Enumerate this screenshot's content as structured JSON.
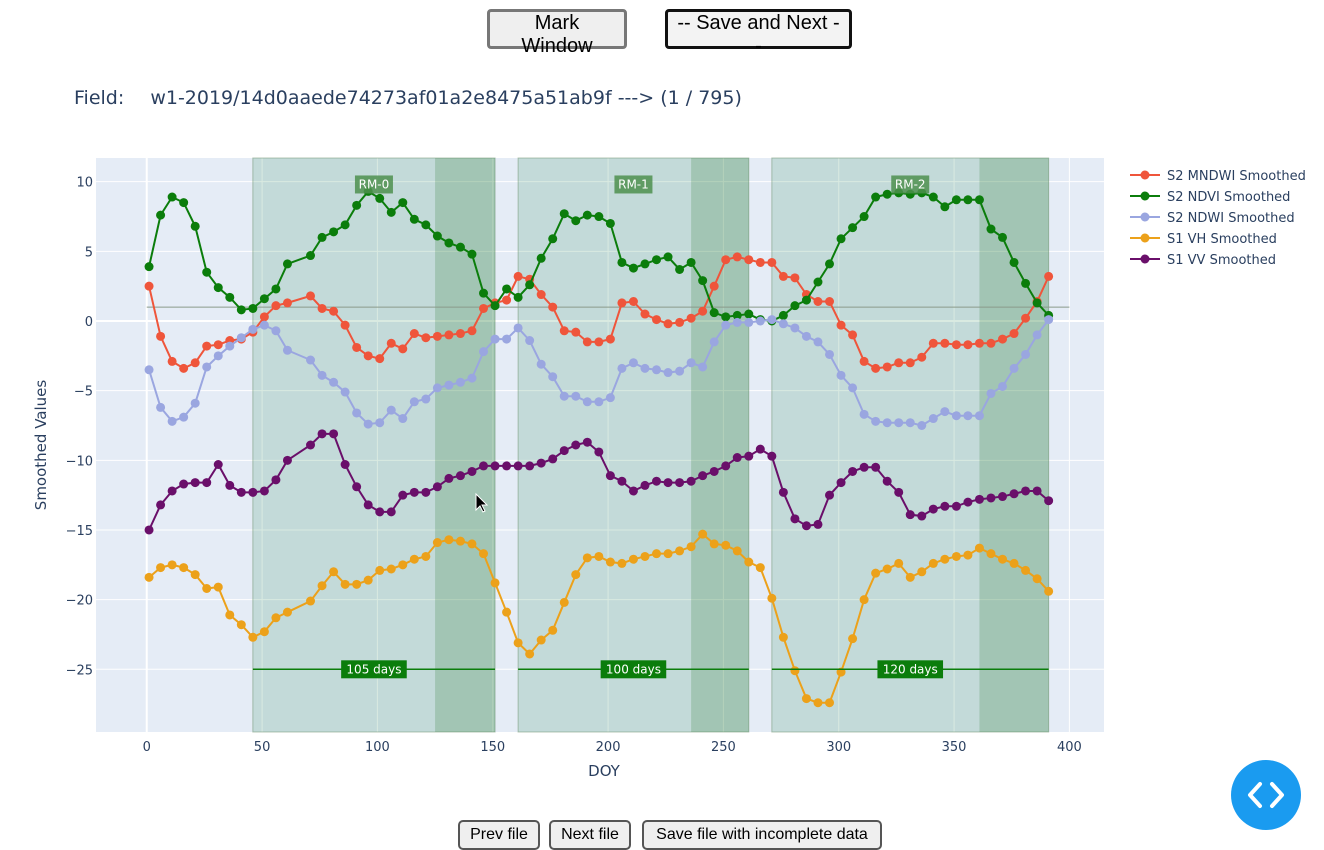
{
  "toolbar": {
    "mark_window_label": "Mark Window",
    "save_next_label": "-- Save and Next --"
  },
  "field": {
    "label": "Field:",
    "path": "w1-2019/14d0aaede74273af01a2e8475a51ab9f",
    "arrow": "--->",
    "progress": "(1 / 795)"
  },
  "footer": {
    "prev_label": "Prev file",
    "next_label": "Next file",
    "save_incomplete_label": "Save file with incomplete data"
  },
  "code_button": {
    "icon": "code-brackets-icon",
    "color": "#1a9bf0"
  },
  "chart_data": {
    "type": "line",
    "xlabel": "DOY",
    "ylabel": "Smoothed Values",
    "xlim": [
      -22,
      415
    ],
    "ylim": [
      -29.5,
      11.7
    ],
    "xticks": [
      0,
      50,
      100,
      150,
      200,
      250,
      300,
      350,
      400
    ],
    "yticks": [
      10,
      5,
      0,
      -5,
      -10,
      -15,
      -20,
      -25
    ],
    "plot_background": "#e5ecf6",
    "grid": true,
    "legend_position": "right",
    "reference_line": {
      "y": 1.0,
      "x_range": [
        0,
        400
      ],
      "color": "#8a9a8a"
    },
    "windows": [
      {
        "label": "RM-0",
        "duration_label": "105 days",
        "start": 46,
        "end": 151,
        "dark_start": 125
      },
      {
        "label": "RM-1",
        "duration_label": "100 days",
        "start": 161,
        "end": 261,
        "dark_start": 236
      },
      {
        "label": "RM-2",
        "duration_label": "120 days",
        "start": 271,
        "end": 391,
        "dark_start": 361
      }
    ],
    "series": [
      {
        "name": "S2 MNDWI Smoothed",
        "color": "#ef553b",
        "x": [
          1,
          6,
          11,
          16,
          21,
          26,
          31,
          36,
          41,
          46,
          51,
          56,
          61,
          71,
          76,
          81,
          86,
          91,
          96,
          101,
          106,
          111,
          116,
          121,
          126,
          131,
          136,
          141,
          146,
          151,
          156,
          161,
          166,
          171,
          176,
          181,
          186,
          191,
          196,
          201,
          206,
          211,
          216,
          221,
          226,
          231,
          236,
          241,
          246,
          251,
          256,
          261,
          266,
          271,
          276,
          281,
          286,
          291,
          296,
          301,
          306,
          311,
          316,
          321,
          326,
          331,
          336,
          341,
          346,
          351,
          356,
          361,
          366,
          371,
          376,
          381,
          386,
          391
        ],
        "y": [
          2.5,
          -1.1,
          -2.9,
          -3.4,
          -3.0,
          -1.8,
          -1.7,
          -1.4,
          -1.3,
          -0.8,
          0.3,
          1.1,
          1.3,
          1.8,
          0.9,
          0.7,
          -0.3,
          -1.9,
          -2.5,
          -2.7,
          -1.6,
          -2.0,
          -0.9,
          -1.2,
          -1.1,
          -1.0,
          -0.9,
          -0.7,
          0.9,
          1.3,
          1.5,
          3.2,
          3.0,
          1.9,
          1.0,
          -0.7,
          -0.8,
          -1.5,
          -1.5,
          -1.3,
          1.3,
          1.4,
          0.5,
          0.1,
          -0.2,
          -0.1,
          0.2,
          0.7,
          2.5,
          4.4,
          4.6,
          4.4,
          4.2,
          4.2,
          3.2,
          3.1,
          1.9,
          1.4,
          1.4,
          -0.3,
          -1.0,
          -2.9,
          -3.4,
          -3.3,
          -3.0,
          -3.0,
          -2.6,
          -1.6,
          -1.6,
          -1.7,
          -1.7,
          -1.6,
          -1.6,
          -1.3,
          -0.9,
          0.2,
          1.4,
          3.2
        ]
      },
      {
        "name": "S2 NDVI Smoothed",
        "color": "#0b7d0b",
        "x": [
          1,
          6,
          11,
          16,
          21,
          26,
          31,
          36,
          41,
          46,
          51,
          56,
          61,
          71,
          76,
          81,
          86,
          91,
          96,
          101,
          106,
          111,
          116,
          121,
          126,
          131,
          136,
          141,
          146,
          151,
          156,
          161,
          166,
          171,
          176,
          181,
          186,
          191,
          196,
          201,
          206,
          211,
          216,
          221,
          226,
          231,
          236,
          241,
          246,
          251,
          256,
          261,
          266,
          271,
          276,
          281,
          286,
          291,
          296,
          301,
          306,
          311,
          316,
          321,
          326,
          331,
          336,
          341,
          346,
          351,
          356,
          361,
          366,
          371,
          376,
          381,
          386,
          391
        ],
        "y": [
          3.9,
          7.6,
          8.9,
          8.5,
          6.8,
          3.5,
          2.4,
          1.7,
          0.8,
          0.9,
          1.6,
          2.3,
          4.1,
          4.7,
          6.0,
          6.4,
          6.9,
          8.3,
          9.3,
          8.8,
          7.8,
          8.5,
          7.3,
          6.9,
          6.1,
          5.6,
          5.3,
          4.8,
          2.0,
          1.1,
          2.3,
          1.7,
          2.6,
          4.5,
          5.9,
          7.7,
          7.2,
          7.6,
          7.5,
          7.0,
          4.2,
          3.8,
          4.1,
          4.4,
          4.6,
          3.7,
          4.2,
          2.9,
          0.6,
          0.3,
          0.4,
          0.5,
          0.1,
          0.0,
          0.4,
          1.1,
          1.5,
          2.8,
          4.1,
          5.9,
          6.7,
          7.5,
          8.9,
          9.1,
          9.2,
          9.1,
          9.2,
          8.9,
          8.2,
          8.7,
          8.7,
          8.7,
          6.6,
          6.0,
          4.2,
          2.7,
          1.3,
          0.4
        ]
      },
      {
        "name": "S2 NDWI Smoothed",
        "color": "#9aa6e0",
        "x": [
          1,
          6,
          11,
          16,
          21,
          26,
          31,
          36,
          41,
          46,
          51,
          56,
          61,
          71,
          76,
          81,
          86,
          91,
          96,
          101,
          106,
          111,
          116,
          121,
          126,
          131,
          136,
          141,
          146,
          151,
          156,
          161,
          166,
          171,
          176,
          181,
          186,
          191,
          196,
          201,
          206,
          211,
          216,
          221,
          226,
          231,
          236,
          241,
          246,
          251,
          256,
          261,
          266,
          271,
          276,
          281,
          286,
          291,
          296,
          301,
          306,
          311,
          316,
          321,
          326,
          331,
          336,
          341,
          346,
          351,
          356,
          361,
          366,
          371,
          376,
          381,
          386,
          391
        ],
        "y": [
          -3.5,
          -6.2,
          -7.2,
          -6.9,
          -5.9,
          -3.3,
          -2.5,
          -1.8,
          -1.2,
          -0.6,
          -0.3,
          -0.7,
          -2.1,
          -2.8,
          -3.9,
          -4.4,
          -5.1,
          -6.6,
          -7.4,
          -7.3,
          -6.4,
          -7.0,
          -5.8,
          -5.6,
          -4.8,
          -4.6,
          -4.4,
          -4.1,
          -2.2,
          -1.3,
          -1.3,
          -0.5,
          -1.4,
          -3.1,
          -4.0,
          -5.4,
          -5.4,
          -5.8,
          -5.8,
          -5.5,
          -3.4,
          -3.0,
          -3.4,
          -3.5,
          -3.7,
          -3.6,
          -3.0,
          -3.3,
          -1.5,
          -0.3,
          -0.1,
          -0.1,
          0.0,
          0.1,
          -0.2,
          -0.5,
          -1.1,
          -1.5,
          -2.4,
          -3.9,
          -4.8,
          -6.7,
          -7.2,
          -7.3,
          -7.3,
          -7.3,
          -7.5,
          -7.0,
          -6.5,
          -6.8,
          -6.8,
          -6.8,
          -5.2,
          -4.7,
          -3.4,
          -2.4,
          -1.0,
          0.1
        ]
      },
      {
        "name": "S1 VH Smoothed",
        "color": "#eca11a",
        "x": [
          1,
          6,
          11,
          16,
          21,
          26,
          31,
          36,
          41,
          46,
          51,
          56,
          61,
          71,
          76,
          81,
          86,
          91,
          96,
          101,
          106,
          111,
          116,
          121,
          126,
          131,
          136,
          141,
          146,
          151,
          156,
          161,
          166,
          171,
          176,
          181,
          186,
          191,
          196,
          201,
          206,
          211,
          216,
          221,
          226,
          231,
          236,
          241,
          246,
          251,
          256,
          261,
          266,
          271,
          276,
          281,
          286,
          291,
          296,
          301,
          306,
          311,
          316,
          321,
          326,
          331,
          336,
          341,
          346,
          351,
          356,
          361,
          366,
          371,
          376,
          381,
          386,
          391
        ],
        "y": [
          -18.4,
          -17.7,
          -17.5,
          -17.7,
          -18.2,
          -19.2,
          -19.1,
          -21.1,
          -21.8,
          -22.7,
          -22.3,
          -21.3,
          -20.9,
          -20.1,
          -19.0,
          -18.0,
          -18.9,
          -18.9,
          -18.6,
          -17.9,
          -17.8,
          -17.5,
          -17.1,
          -16.9,
          -15.9,
          -15.7,
          -15.8,
          -16.0,
          -16.7,
          -18.8,
          -20.9,
          -23.1,
          -23.9,
          -22.9,
          -22.2,
          -20.2,
          -18.2,
          -17.0,
          -16.9,
          -17.3,
          -17.4,
          -17.1,
          -16.9,
          -16.7,
          -16.7,
          -16.5,
          -16.2,
          -15.3,
          -16.0,
          -16.1,
          -16.5,
          -17.3,
          -17.7,
          -19.9,
          -22.7,
          -25.1,
          -27.1,
          -27.4,
          -27.4,
          -25.2,
          -22.8,
          -20.0,
          -18.1,
          -17.8,
          -17.4,
          -18.4,
          -18.0,
          -17.4,
          -17.1,
          -16.9,
          -16.8,
          -16.3,
          -16.7,
          -17.1,
          -17.4,
          -17.9,
          -18.5,
          -19.4
        ]
      },
      {
        "name": "S1 VV Smoothed",
        "color": "#6a0f6a",
        "x": [
          1,
          6,
          11,
          16,
          21,
          26,
          31,
          36,
          41,
          46,
          51,
          56,
          61,
          71,
          76,
          81,
          86,
          91,
          96,
          101,
          106,
          111,
          116,
          121,
          126,
          131,
          136,
          141,
          146,
          151,
          156,
          161,
          166,
          171,
          176,
          181,
          186,
          191,
          196,
          201,
          206,
          211,
          216,
          221,
          226,
          231,
          236,
          241,
          246,
          251,
          256,
          261,
          266,
          271,
          276,
          281,
          286,
          291,
          296,
          301,
          306,
          311,
          316,
          321,
          326,
          331,
          336,
          341,
          346,
          351,
          356,
          361,
          366,
          371,
          376,
          381,
          386,
          391
        ],
        "y": [
          -15.0,
          -13.2,
          -12.2,
          -11.7,
          -11.6,
          -11.6,
          -10.3,
          -11.8,
          -12.3,
          -12.3,
          -12.2,
          -11.4,
          -10.0,
          -8.9,
          -8.1,
          -8.1,
          -10.3,
          -11.9,
          -13.2,
          -13.7,
          -13.7,
          -12.5,
          -12.3,
          -12.3,
          -11.9,
          -11.3,
          -11.1,
          -10.8,
          -10.4,
          -10.4,
          -10.4,
          -10.4,
          -10.4,
          -10.2,
          -9.9,
          -9.3,
          -8.9,
          -8.7,
          -9.4,
          -11.1,
          -11.5,
          -12.2,
          -11.8,
          -11.5,
          -11.6,
          -11.6,
          -11.5,
          -11.1,
          -10.8,
          -10.4,
          -9.8,
          -9.7,
          -9.2,
          -9.7,
          -12.3,
          -14.2,
          -14.7,
          -14.6,
          -12.5,
          -11.6,
          -10.8,
          -10.5,
          -10.5,
          -11.5,
          -12.3,
          -13.9,
          -14.0,
          -13.5,
          -13.3,
          -13.3,
          -13.0,
          -12.8,
          -12.7,
          -12.6,
          -12.4,
          -12.2,
          -12.2,
          -12.9
        ]
      }
    ]
  }
}
